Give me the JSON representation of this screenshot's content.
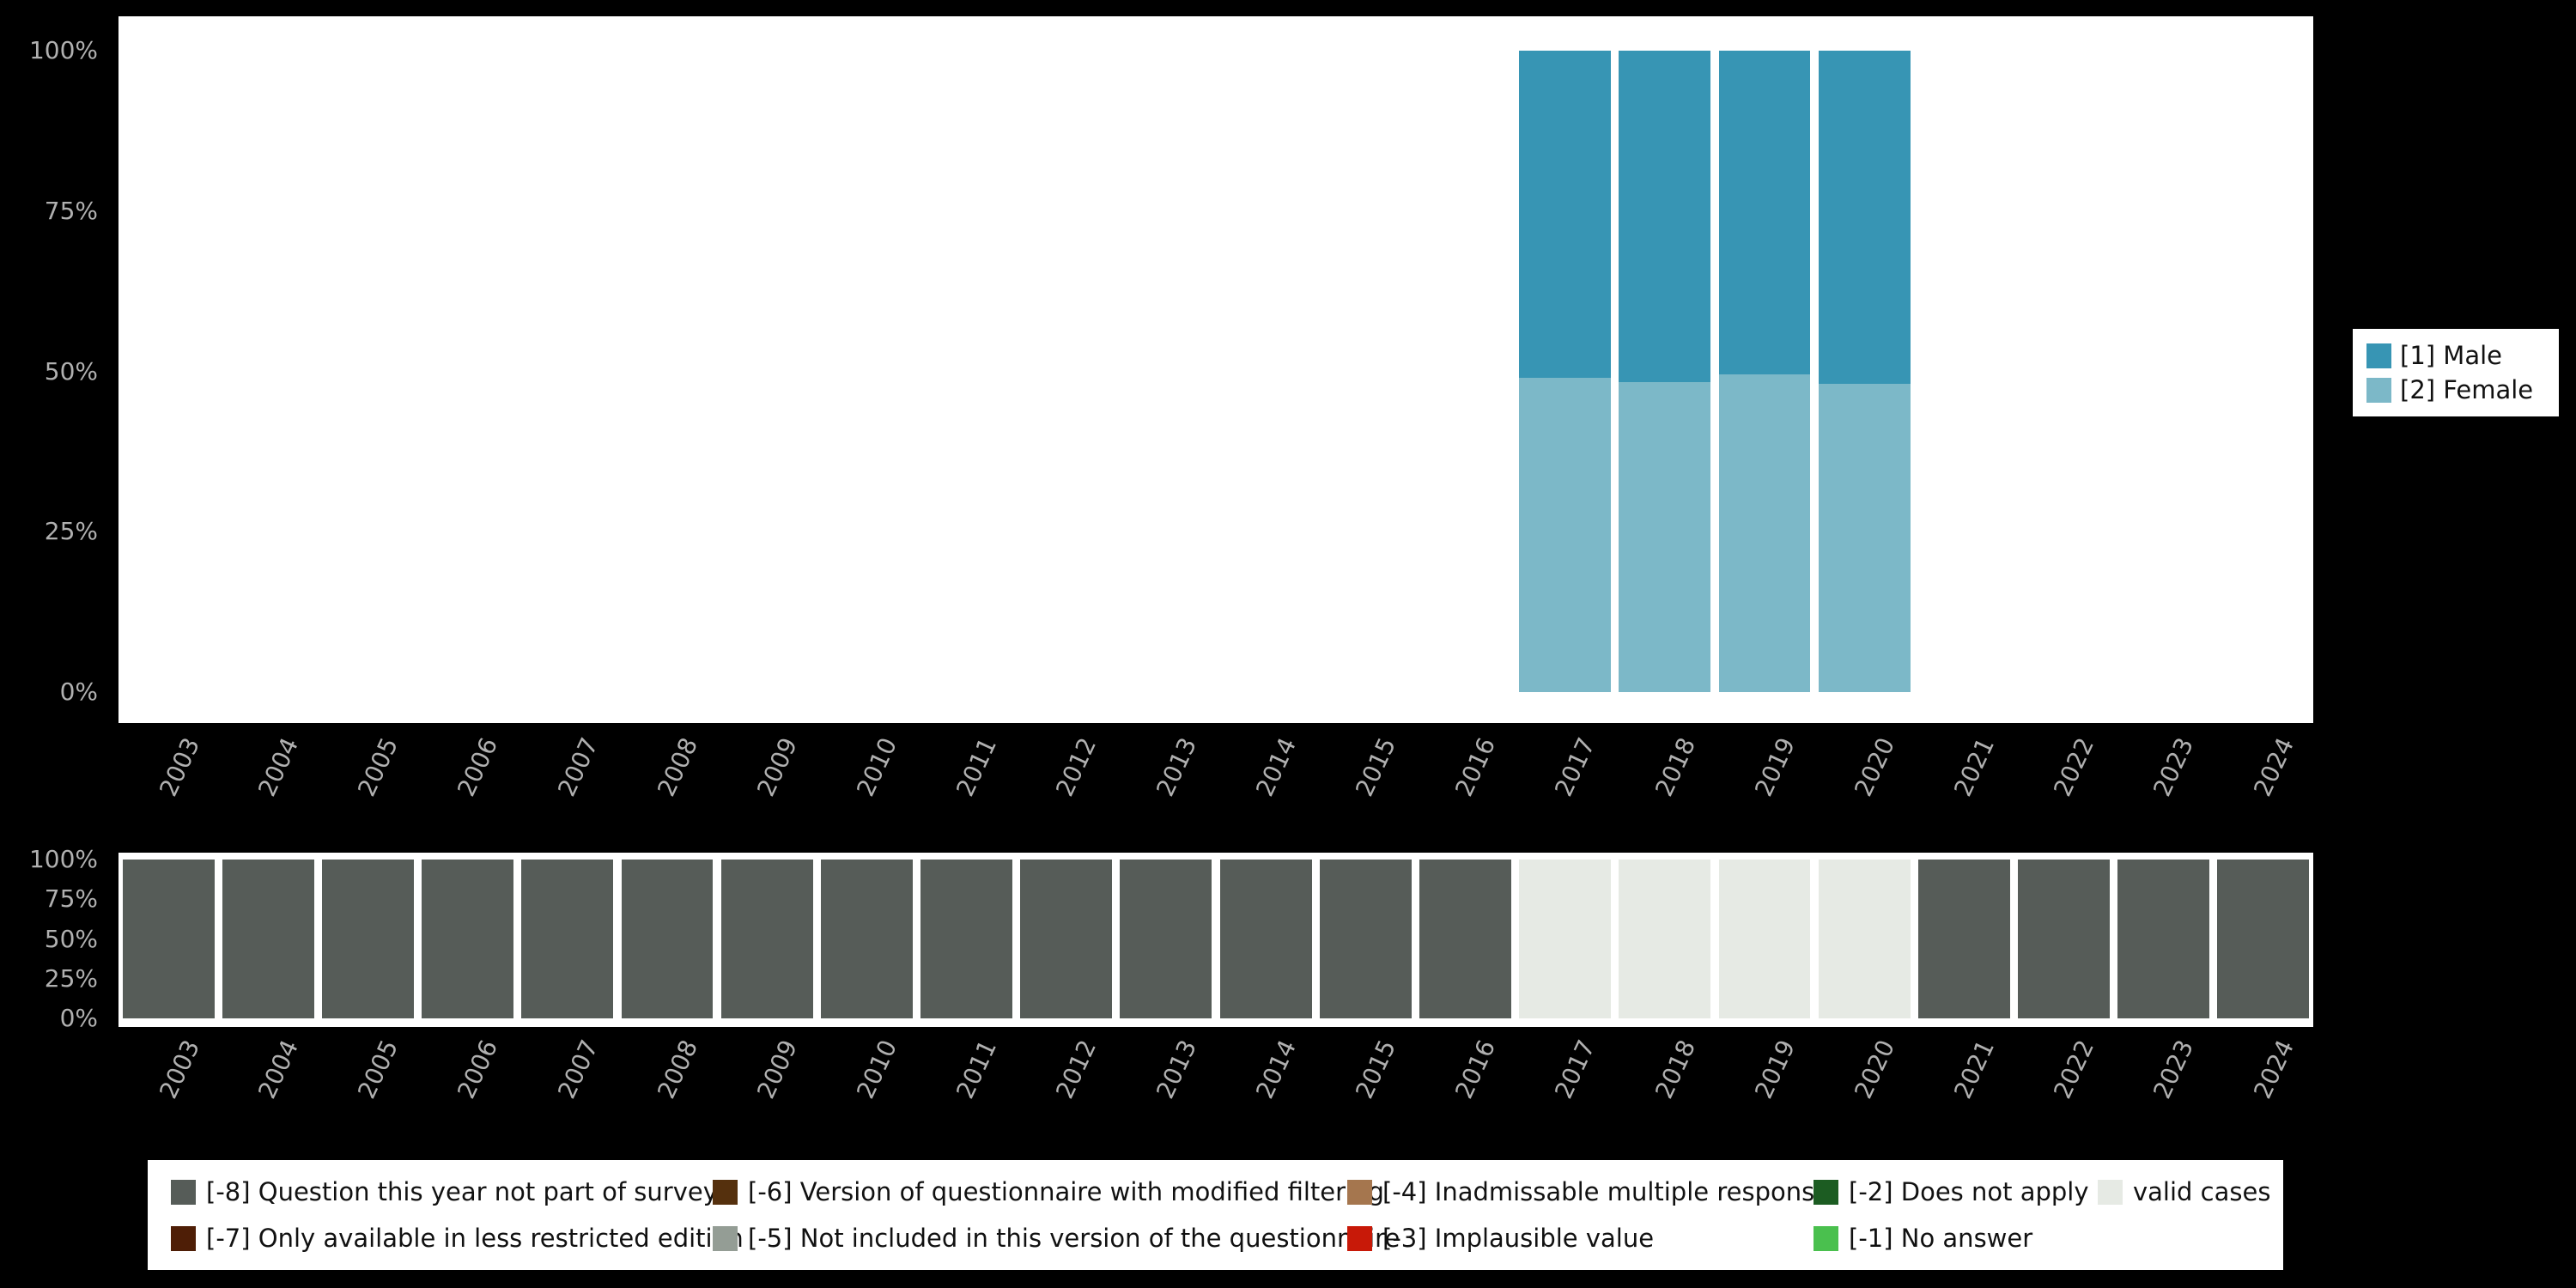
{
  "figure": {
    "background": "#000000",
    "panel_background": "#ffffff",
    "axis_text_color": "#b0b0b0"
  },
  "chart_data": [
    {
      "id": "sex-distribution",
      "type": "bar",
      "stacked": true,
      "units": "percent",
      "ylim": [
        0,
        100
      ],
      "grid": false,
      "categories": [
        "2003",
        "2004",
        "2005",
        "2006",
        "2007",
        "2008",
        "2009",
        "2010",
        "2011",
        "2012",
        "2013",
        "2014",
        "2015",
        "2016",
        "2017",
        "2018",
        "2019",
        "2020",
        "2021",
        "2022",
        "2023",
        "2024"
      ],
      "yticks": [
        {
          "label": "0%",
          "value": 0
        },
        {
          "label": "25%",
          "value": 25
        },
        {
          "label": "50%",
          "value": 50
        },
        {
          "label": "75%",
          "value": 75
        },
        {
          "label": "100%",
          "value": 100
        }
      ],
      "series": [
        {
          "name": "[1] Male",
          "color": "#3795b4",
          "values": [
            null,
            null,
            null,
            null,
            null,
            null,
            null,
            null,
            null,
            null,
            null,
            null,
            null,
            null,
            51.0,
            51.7,
            50.5,
            52.0,
            null,
            null,
            null,
            null
          ]
        },
        {
          "name": "[2] Female",
          "color": "#7cb8c8",
          "values": [
            null,
            null,
            null,
            null,
            null,
            null,
            null,
            null,
            null,
            null,
            null,
            null,
            null,
            null,
            49.0,
            48.3,
            49.5,
            48.0,
            null,
            null,
            null,
            null
          ]
        }
      ],
      "legend": {
        "position": "right",
        "items": [
          {
            "label": "[1] Male",
            "color": "#3795b4"
          },
          {
            "label": "[2] Female",
            "color": "#7cb8c8"
          }
        ]
      }
    },
    {
      "id": "missing-values",
      "type": "bar",
      "stacked": true,
      "units": "percent",
      "ylim": [
        0,
        100
      ],
      "grid": false,
      "categories": [
        "2003",
        "2004",
        "2005",
        "2006",
        "2007",
        "2008",
        "2009",
        "2010",
        "2011",
        "2012",
        "2013",
        "2014",
        "2015",
        "2016",
        "2017",
        "2018",
        "2019",
        "2020",
        "2021",
        "2022",
        "2023",
        "2024"
      ],
      "yticks": [
        {
          "label": "0%",
          "value": 0
        },
        {
          "label": "25%",
          "value": 25
        },
        {
          "label": "50%",
          "value": 50
        },
        {
          "label": "75%",
          "value": 75
        },
        {
          "label": "100%",
          "value": 100
        }
      ],
      "series": [
        {
          "name": "[-8] Question this year not part of survey",
          "color": "#565c58",
          "values": [
            100,
            100,
            100,
            100,
            100,
            100,
            100,
            100,
            100,
            100,
            100,
            100,
            100,
            100,
            0,
            0,
            0,
            0,
            100,
            100,
            100,
            100
          ]
        },
        {
          "name": "valid cases",
          "color": "#e6eae4",
          "values": [
            0,
            0,
            0,
            0,
            0,
            0,
            0,
            0,
            0,
            0,
            0,
            0,
            0,
            0,
            100,
            100,
            100,
            100,
            0,
            0,
            0,
            0
          ]
        }
      ]
    }
  ],
  "missing_legend": {
    "items": [
      {
        "label": "[-8] Question this year not part of survey",
        "color": "#565c58",
        "column": 0,
        "row": 0
      },
      {
        "label": "[-6] Version of questionnaire with modified filtering",
        "color": "#55300d",
        "column": 1,
        "row": 0
      },
      {
        "label": "[-4] Inadmissable multiple response",
        "color": "#a5764e",
        "column": 2,
        "row": 0
      },
      {
        "label": "[-2] Does not apply",
        "color": "#1c5c22",
        "column": 3,
        "row": 0
      },
      {
        "label": "valid cases",
        "color": "#e6eae4",
        "column": 4,
        "row": 0
      },
      {
        "label": "[-7] Only available in less restricted edition",
        "color": "#4e1e06",
        "column": 0,
        "row": 1
      },
      {
        "label": "[-5] Not included in this version of the questionnaire",
        "color": "#949d95",
        "column": 1,
        "row": 1
      },
      {
        "label": "[-3] Implausible value",
        "color": "#c81908",
        "column": 2,
        "row": 1
      },
      {
        "label": "[-1] No answer",
        "color": "#4ac04e",
        "column": 3,
        "row": 1
      }
    ]
  }
}
